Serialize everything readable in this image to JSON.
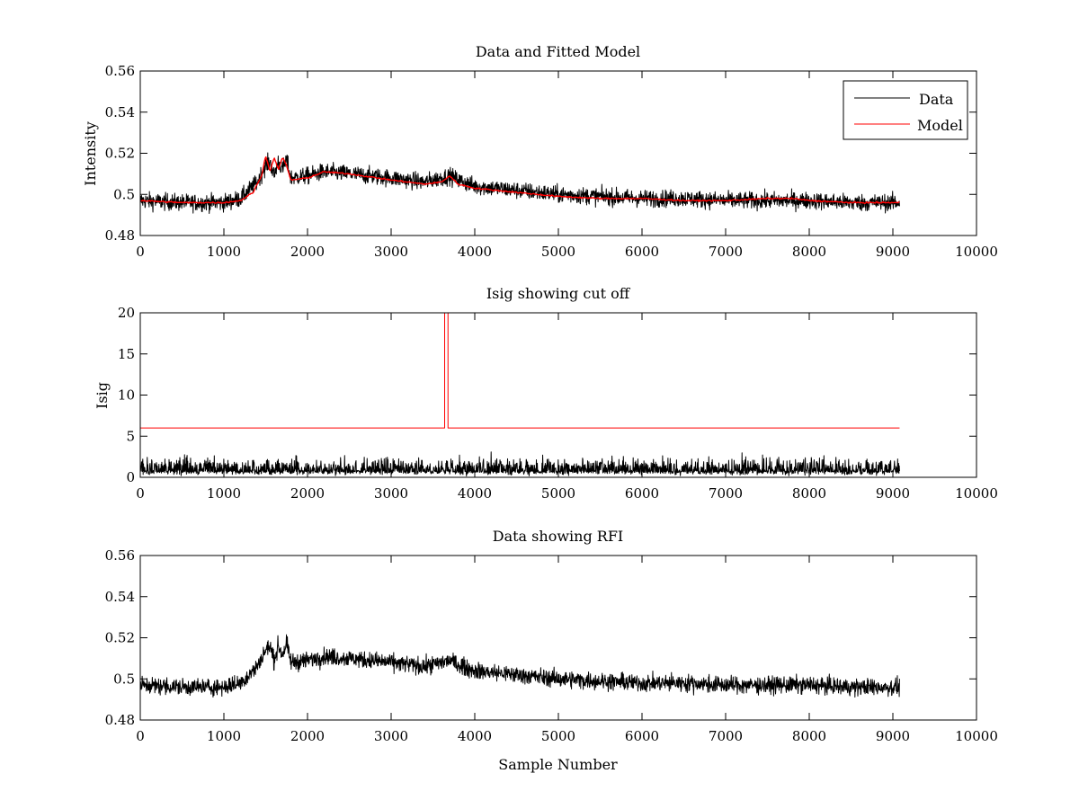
{
  "chart_data": [
    {
      "type": "line",
      "title": "Data and Fitted Model",
      "xlabel": "",
      "ylabel": "Intensity",
      "xlim": [
        0,
        10000
      ],
      "ylim": [
        0.48,
        0.56
      ],
      "xticks": [
        0,
        1000,
        2000,
        3000,
        4000,
        5000,
        6000,
        7000,
        8000,
        9000,
        10000
      ],
      "xtick_labels": [
        "0",
        "1000",
        "2000",
        "3000",
        "4000",
        "5000",
        "6000",
        "7000",
        "8000",
        "9000",
        "10000"
      ],
      "yticks": [
        0.48,
        0.5,
        0.52,
        0.54,
        0.56
      ],
      "ytick_labels": [
        "0.48",
        "0.5",
        "0.52",
        "0.54",
        "0.56"
      ],
      "grid": false,
      "legend": "top-right",
      "series": [
        {
          "name": "Data",
          "color": "#000000",
          "style": "noisy",
          "noise_amplitude": 0.007,
          "x": [
            0,
            500,
            1000,
            1200,
            1400,
            1500,
            1550,
            1600,
            1650,
            1700,
            1750,
            1800,
            2000,
            2200,
            2500,
            3000,
            3400,
            3600,
            3700,
            3800,
            4000,
            4500,
            5000,
            5500,
            6000,
            6500,
            7000,
            7500,
            8000,
            8500,
            9080
          ],
          "values": [
            0.497,
            0.496,
            0.496,
            0.498,
            0.506,
            0.514,
            0.516,
            0.509,
            0.516,
            0.512,
            0.517,
            0.508,
            0.509,
            0.511,
            0.51,
            0.508,
            0.506,
            0.508,
            0.509,
            0.507,
            0.504,
            0.502,
            0.5,
            0.499,
            0.498,
            0.498,
            0.497,
            0.497,
            0.497,
            0.496,
            0.496
          ]
        },
        {
          "name": "Model",
          "color": "#ff0000",
          "style": "smooth",
          "x": [
            0,
            500,
            1000,
            1200,
            1350,
            1450,
            1500,
            1550,
            1600,
            1650,
            1700,
            1750,
            1800,
            2000,
            2200,
            2500,
            3000,
            3400,
            3600,
            3700,
            3800,
            4000,
            4500,
            5000,
            5500,
            6000,
            6500,
            7000,
            7500,
            7800,
            8000,
            8500,
            9080
          ],
          "values": [
            0.497,
            0.496,
            0.496,
            0.497,
            0.501,
            0.509,
            0.519,
            0.511,
            0.518,
            0.512,
            0.518,
            0.514,
            0.507,
            0.508,
            0.511,
            0.51,
            0.507,
            0.505,
            0.506,
            0.509,
            0.505,
            0.503,
            0.501,
            0.499,
            0.498,
            0.498,
            0.497,
            0.497,
            0.498,
            0.498,
            0.497,
            0.496,
            0.496
          ]
        }
      ]
    },
    {
      "type": "line",
      "title": "Isig showing cut off",
      "xlabel": "",
      "ylabel": "Isig",
      "xlim": [
        0,
        10000
      ],
      "ylim": [
        0,
        20
      ],
      "xticks": [
        0,
        1000,
        2000,
        3000,
        4000,
        5000,
        6000,
        7000,
        8000,
        9000,
        10000
      ],
      "xtick_labels": [
        "0",
        "1000",
        "2000",
        "3000",
        "4000",
        "5000",
        "6000",
        "7000",
        "8000",
        "9000",
        "10000"
      ],
      "yticks": [
        0,
        5,
        10,
        15,
        20
      ],
      "ytick_labels": [
        "0",
        "5",
        "10",
        "15",
        "20"
      ],
      "grid": false,
      "series": [
        {
          "color": "#000000",
          "style": "noise-floor",
          "x": [
            0,
            9080
          ],
          "values": [
            0.8,
            0.8
          ],
          "noise_amplitude": 2.5
        },
        {
          "color": "#ff0000",
          "style": "step",
          "x": [
            0,
            3640,
            3640,
            3680,
            3680,
            9080
          ],
          "values": [
            6,
            6,
            20,
            20,
            6,
            6
          ]
        }
      ]
    },
    {
      "type": "line",
      "title": "Data showing RFI",
      "xlabel": "Sample Number",
      "ylabel": "",
      "xlim": [
        0,
        10000
      ],
      "ylim": [
        0.48,
        0.56
      ],
      "xticks": [
        0,
        1000,
        2000,
        3000,
        4000,
        5000,
        6000,
        7000,
        8000,
        9000,
        10000
      ],
      "xtick_labels": [
        "0",
        "1000",
        "2000",
        "3000",
        "4000",
        "5000",
        "6000",
        "7000",
        "8000",
        "9000",
        "10000"
      ],
      "yticks": [
        0.48,
        0.5,
        0.52,
        0.54,
        0.56
      ],
      "ytick_labels": [
        "0.48",
        "0.5",
        "0.52",
        "0.54",
        "0.56"
      ],
      "grid": false,
      "series": [
        {
          "color": "#000000",
          "style": "noisy",
          "noise_amplitude": 0.007,
          "x": [
            0,
            500,
            1000,
            1200,
            1400,
            1500,
            1550,
            1600,
            1650,
            1700,
            1750,
            1800,
            2000,
            2200,
            2500,
            3000,
            3400,
            3600,
            3700,
            3800,
            4000,
            4500,
            5000,
            5500,
            6000,
            6500,
            7000,
            7500,
            8000,
            8500,
            9080
          ],
          "values": [
            0.497,
            0.496,
            0.496,
            0.498,
            0.506,
            0.514,
            0.516,
            0.509,
            0.516,
            0.512,
            0.517,
            0.508,
            0.509,
            0.511,
            0.51,
            0.508,
            0.506,
            0.508,
            0.509,
            0.507,
            0.504,
            0.502,
            0.5,
            0.499,
            0.498,
            0.498,
            0.497,
            0.497,
            0.497,
            0.496,
            0.496
          ]
        }
      ]
    }
  ]
}
